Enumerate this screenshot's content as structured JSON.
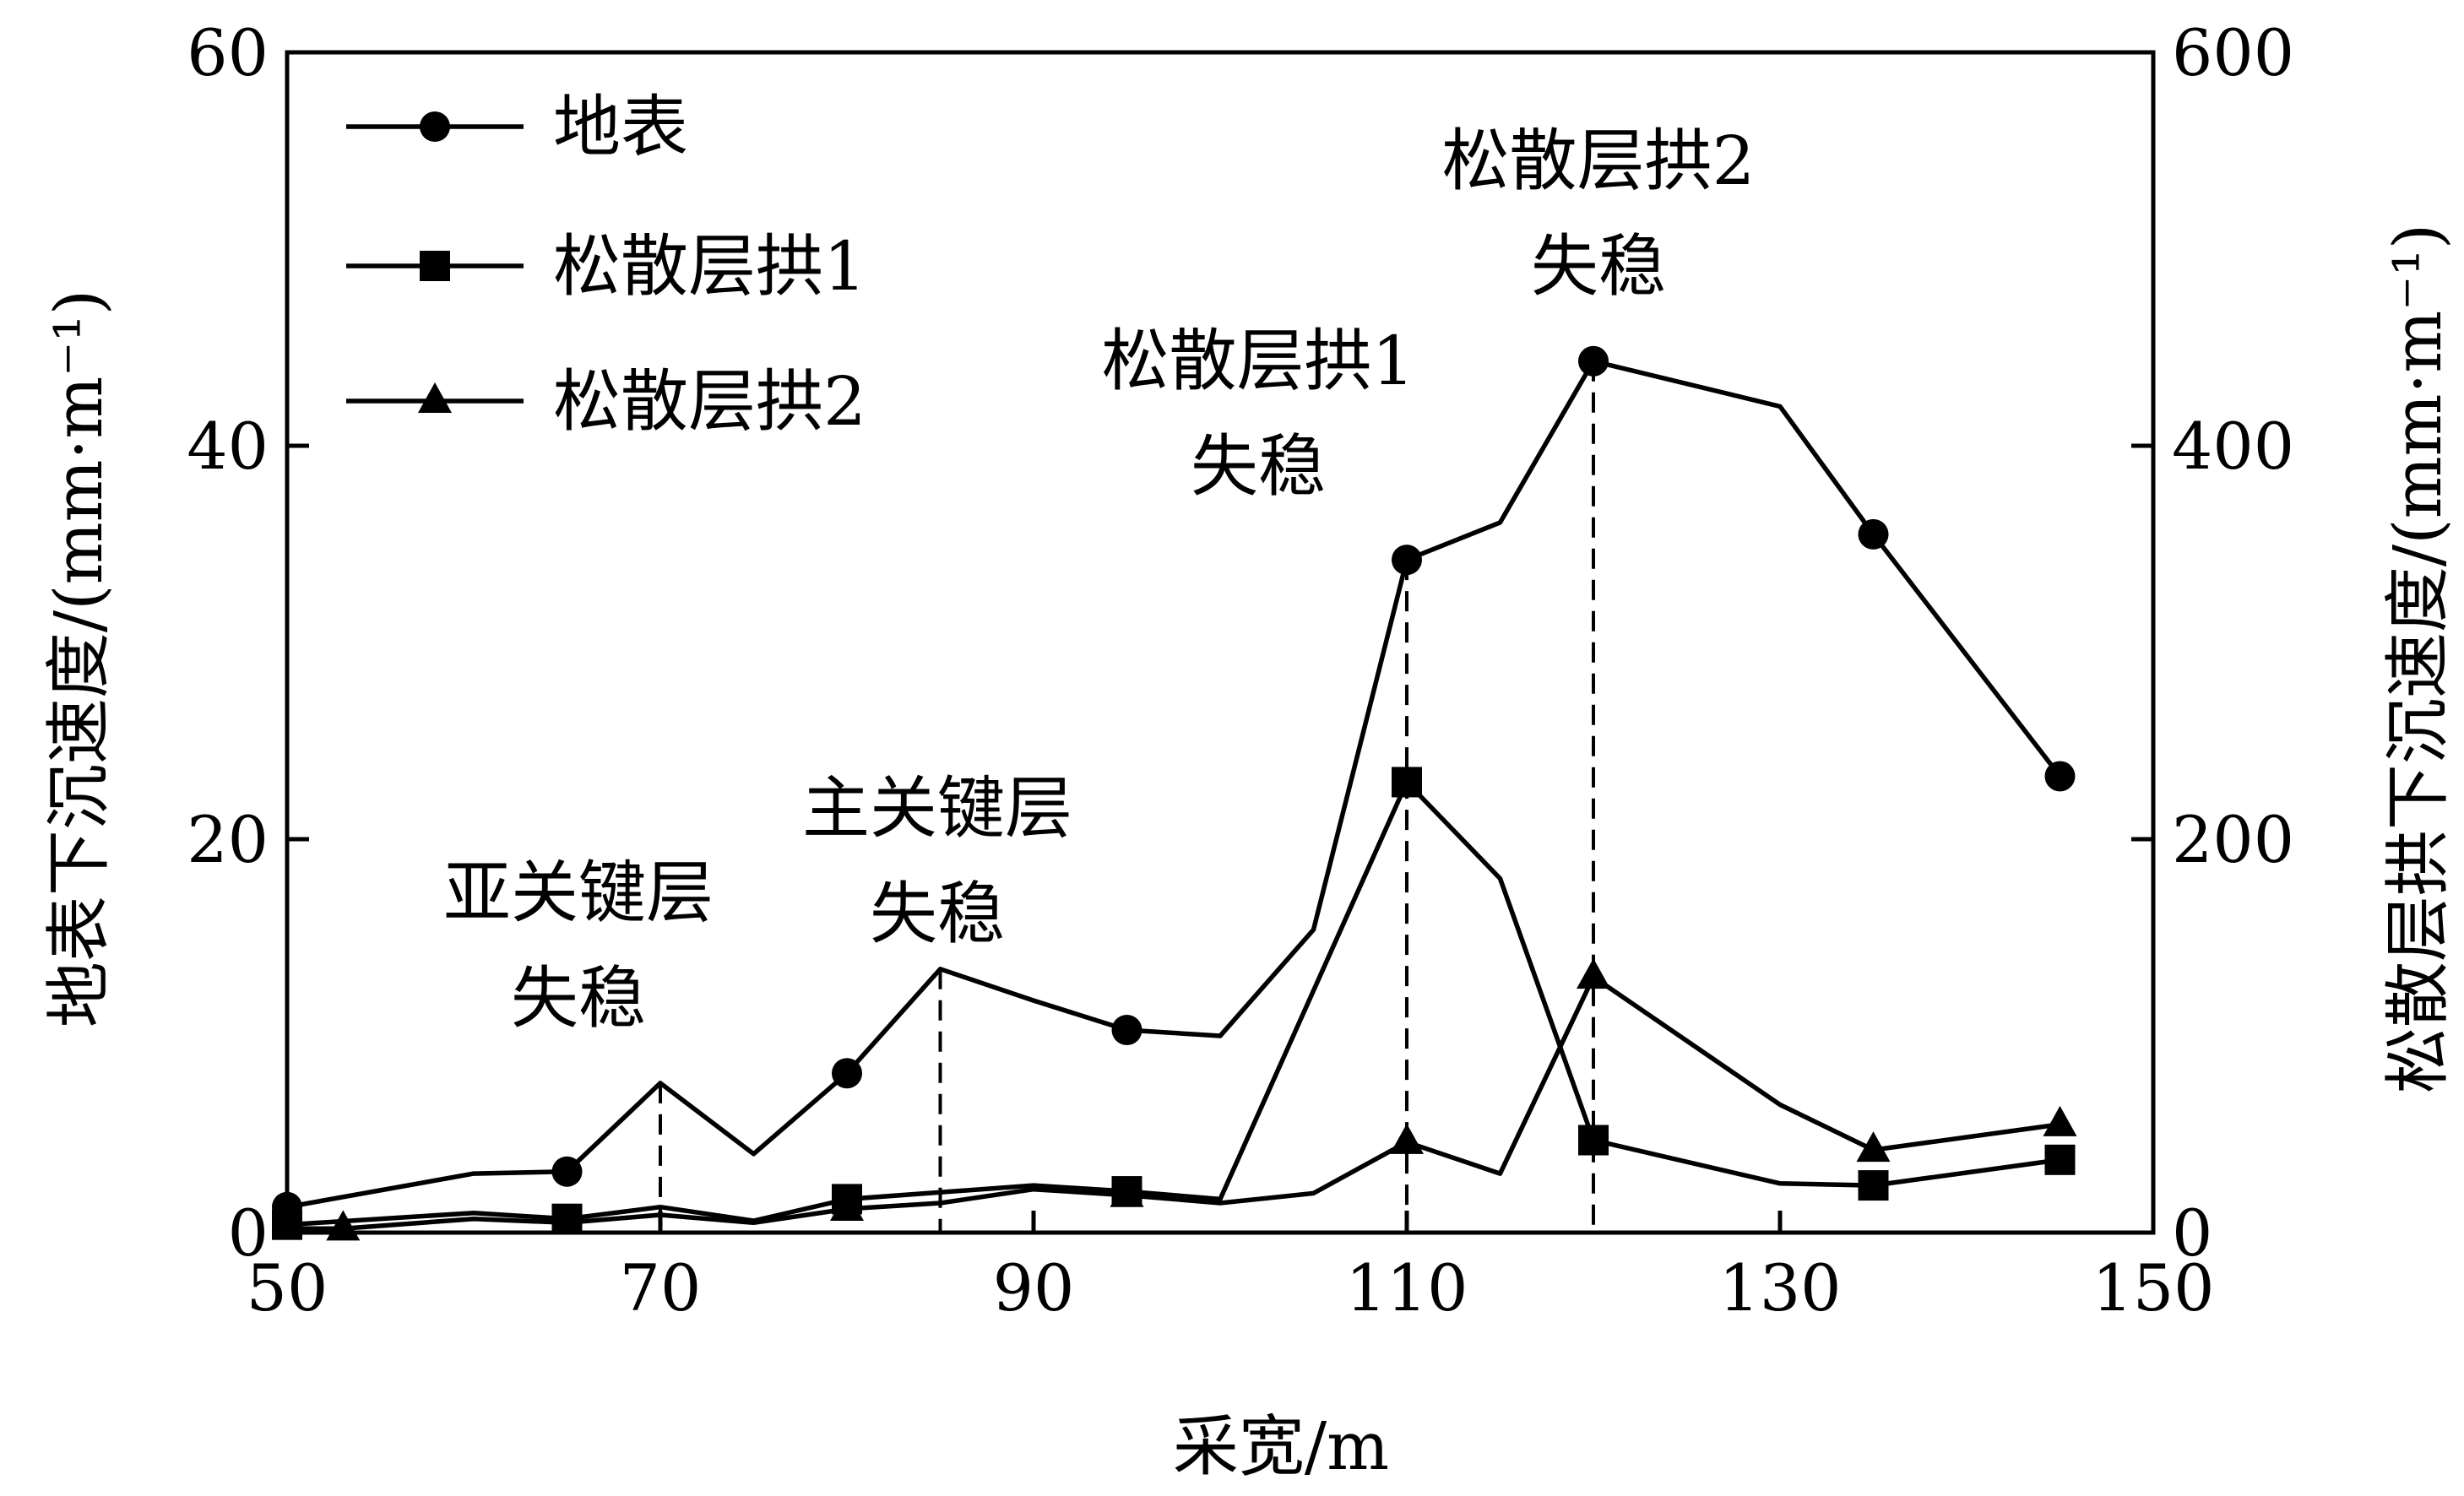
{
  "chart_data": {
    "type": "line",
    "title": "",
    "xlabel": "采宽/m",
    "ylabel_left": "地表下沉速度/(mm·m⁻¹)",
    "ylabel_right": "松散层拱下沉速度/(mm·m⁻¹)",
    "xlim": [
      50,
      150
    ],
    "ylim_left": [
      0,
      60
    ],
    "ylim_right": [
      0,
      600
    ],
    "x_ticks": [
      50,
      70,
      90,
      110,
      130,
      150
    ],
    "y_ticks_left": [
      0,
      20,
      40,
      60
    ],
    "y_ticks_right": [
      0,
      200,
      400,
      600
    ],
    "grid": false,
    "legend_position": "top-left",
    "series": [
      {
        "name": "地表",
        "axis": "left",
        "marker": "circle",
        "x": [
          50,
          60,
          65,
          70,
          75,
          80,
          85,
          90,
          95,
          100,
          105,
          110,
          115,
          120,
          130,
          135,
          145
        ],
        "y": [
          1.3,
          3.0,
          3.1,
          7.6,
          4.0,
          8.1,
          13.4,
          11.8,
          10.3,
          10.0,
          15.4,
          34.2,
          36.1,
          44.3,
          42.0,
          35.5,
          23.2
        ],
        "marked": [
          true,
          false,
          true,
          false,
          false,
          true,
          false,
          false,
          true,
          false,
          false,
          true,
          false,
          true,
          false,
          true,
          true
        ]
      },
      {
        "name": "松散层拱1",
        "axis": "right",
        "marker": "square",
        "x": [
          50,
          60,
          65,
          70,
          75,
          80,
          90,
          95,
          100,
          110,
          115,
          120,
          130,
          135,
          145
        ],
        "y": [
          4,
          10,
          7,
          13,
          6,
          17,
          24,
          21,
          17,
          229,
          180,
          47,
          25,
          24,
          37
        ],
        "marked": [
          true,
          false,
          true,
          false,
          false,
          true,
          false,
          true,
          false,
          true,
          false,
          true,
          false,
          true,
          true
        ]
      },
      {
        "name": "松散层拱2",
        "axis": "right",
        "marker": "triangle",
        "x": [
          50,
          53,
          60,
          65,
          70,
          75,
          80,
          85,
          90,
          95,
          100,
          105,
          110,
          115,
          120,
          130,
          135,
          145
        ],
        "y": [
          2,
          2,
          7,
          5,
          9,
          5,
          12,
          15,
          22,
          19,
          15,
          20,
          46,
          30,
          130,
          65,
          42,
          55
        ],
        "marked": [
          false,
          true,
          false,
          false,
          false,
          false,
          true,
          false,
          false,
          true,
          false,
          false,
          true,
          false,
          true,
          false,
          true,
          true
        ]
      }
    ],
    "dashed_markers": [
      {
        "x": 70,
        "y_left": 7.6
      },
      {
        "x": 85,
        "y_left": 13.4
      },
      {
        "x": 110,
        "y_left": 34.2
      },
      {
        "x": 120,
        "y_left": 44.3
      }
    ],
    "annotations": [
      {
        "lines": [
          "亚关键层",
          "失稳"
        ],
        "x": 70
      },
      {
        "lines": [
          "主关键层",
          "失稳"
        ],
        "x": 85
      },
      {
        "lines": [
          "松散层拱1",
          "失稳"
        ],
        "x": 110
      },
      {
        "lines": [
          "松散层拱2",
          "失稳"
        ],
        "x": 120
      }
    ]
  }
}
